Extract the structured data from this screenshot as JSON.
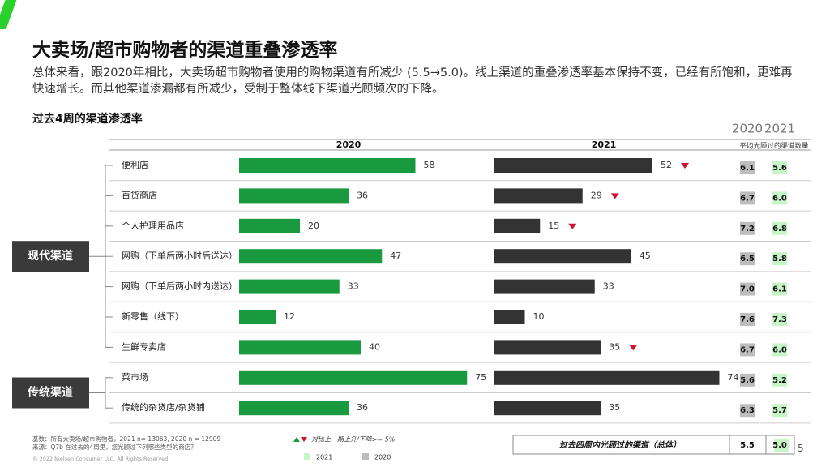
{
  "header": {
    "title": "大卖场/超市购物者的渠道重叠渗透率",
    "subtitle": "总体来看，跟2020年相比，大卖场超市购物者使用的购物渠道有所减少 (5.5→5.0)。线上渠道的重叠渗透率基本保持不变，已经有所饱和，更难再快速增长。而其他渠道渗漏都有所减少，受制于整体线下渠道光顾频次的下降。"
  },
  "chart_data": {
    "type": "bar",
    "title": "过去4周的渠道渗透率",
    "groups": [
      {
        "label": "现代渠道",
        "categories": [
          "便利店",
          "百货商店",
          "个人护理用品店",
          "网购（下单后两小时后送达）",
          "网购（下单后两小时内送达）",
          "新零售（线下）",
          "生鲜专卖店"
        ]
      },
      {
        "label": "传统渠道",
        "categories": [
          "菜市场",
          "传统的杂货店/杂货铺"
        ]
      }
    ],
    "series": [
      {
        "name": "2020",
        "color": "#1a9a3e",
        "values": [
          58,
          36,
          20,
          47,
          33,
          12,
          40,
          75,
          36
        ]
      },
      {
        "name": "2021",
        "color": "#333333",
        "values": [
          52,
          29,
          15,
          45,
          33,
          10,
          35,
          74,
          35
        ],
        "decline": [
          true,
          true,
          true,
          false,
          false,
          false,
          true,
          false,
          false
        ]
      }
    ],
    "xlim": [
      0,
      80
    ],
    "legend_note": "对比上一期上升/下降>= 5%"
  },
  "avg_channels": {
    "columns": [
      "2020",
      "2021"
    ],
    "subheader": "平均光顾过的渠道数量",
    "rows": [
      [
        "6.1",
        "5.6"
      ],
      [
        "6.7",
        "6.0"
      ],
      [
        "7.2",
        "6.8"
      ],
      [
        "6.5",
        "5.8"
      ],
      [
        "7.0",
        "6.1"
      ],
      [
        "7.6",
        "7.3"
      ],
      [
        "6.7",
        "6.0"
      ],
      [
        "5.6",
        "5.2"
      ],
      [
        "6.3",
        "5.7"
      ]
    ],
    "total_label": "过去四周内光顾过的渠道（总体）",
    "total": [
      "5.5",
      "5.0"
    ]
  },
  "footer": {
    "base": "基数：所有大卖场/超市购物者，2021 n= 13063, 2020 n = 12909",
    "source": "来源：Q7b 在过去的4周里，您光顾过下列哪些类型的商店？",
    "copyright": "© 2022 Nielsen Consumer LLC. All Rights Reserved.",
    "page": "5"
  }
}
